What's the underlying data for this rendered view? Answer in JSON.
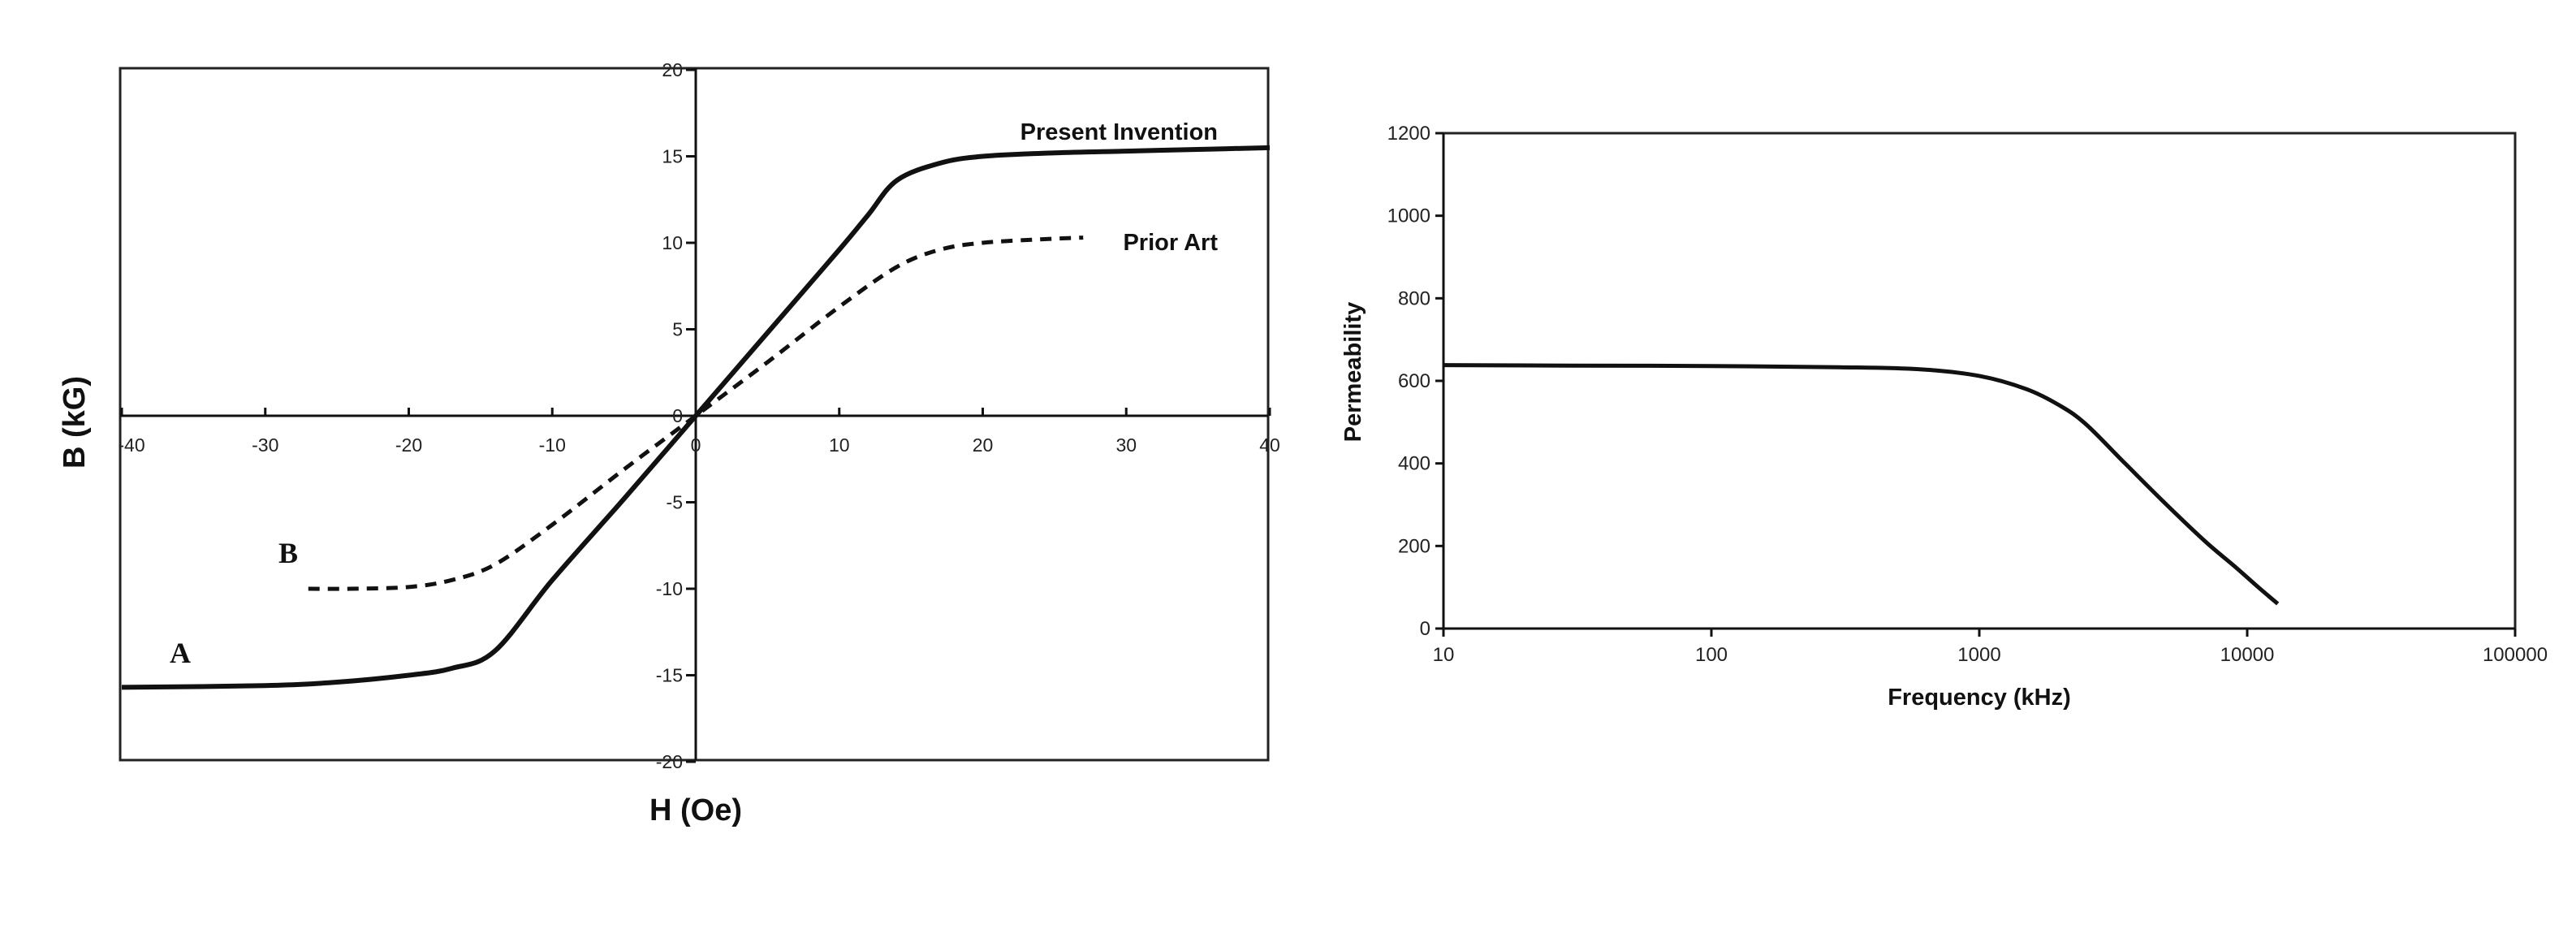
{
  "chart_data": [
    {
      "type": "line",
      "xlabel": "H (Oe)",
      "ylabel": "B (kG)",
      "xlim": [
        -40,
        40
      ],
      "ylim": [
        -20,
        20
      ],
      "xticks": [
        -40,
        -30,
        -20,
        -10,
        0,
        10,
        20,
        30,
        40
      ],
      "yticks": [
        -20,
        -15,
        -10,
        -5,
        0,
        5,
        10,
        15,
        20
      ],
      "grid": false,
      "series": [
        {
          "name": "Present Invention",
          "curve_letter": "A",
          "style": "solid",
          "x": [
            -40,
            -30,
            -25,
            -20,
            -17,
            -14,
            -10,
            -5,
            0,
            5,
            10,
            12,
            14,
            17,
            20,
            25,
            30,
            35,
            40
          ],
          "y": [
            -15.7,
            -15.6,
            -15.4,
            -15.0,
            -14.6,
            -13.6,
            -9.5,
            -4.8,
            0,
            4.8,
            9.6,
            11.6,
            13.6,
            14.6,
            15.0,
            15.2,
            15.3,
            15.4,
            15.5
          ]
        },
        {
          "name": "Prior Art",
          "curve_letter": "B",
          "style": "dashed",
          "x": [
            -27,
            -24,
            -20,
            -17,
            -14,
            -10,
            -5,
            0,
            5,
            10,
            14,
            17,
            20,
            24,
            27
          ],
          "y": [
            -10.0,
            -10.0,
            -9.9,
            -9.5,
            -8.6,
            -6.3,
            -3.1,
            0,
            3.1,
            6.3,
            8.6,
            9.6,
            10.0,
            10.2,
            10.3
          ]
        }
      ]
    },
    {
      "type": "line",
      "xlabel": "Frequency (kHz)",
      "ylabel": "Permeability",
      "xscale": "log",
      "xlim": [
        10,
        100000
      ],
      "ylim": [
        0,
        1200
      ],
      "xticks": [
        "10",
        "100",
        "1000",
        "10000",
        "100000"
      ],
      "yticks": [
        0,
        200,
        400,
        600,
        800,
        1000,
        1200
      ],
      "grid": false,
      "series": [
        {
          "style": "solid",
          "x": [
            10,
            30,
            100,
            300,
            600,
            1000,
            1500,
            2000,
            2500,
            3500,
            5000,
            7000,
            9000,
            11000,
            13000
          ],
          "y": [
            638,
            637,
            636,
            633,
            628,
            612,
            580,
            540,
            495,
            400,
            300,
            210,
            150,
            100,
            60
          ]
        }
      ]
    }
  ]
}
